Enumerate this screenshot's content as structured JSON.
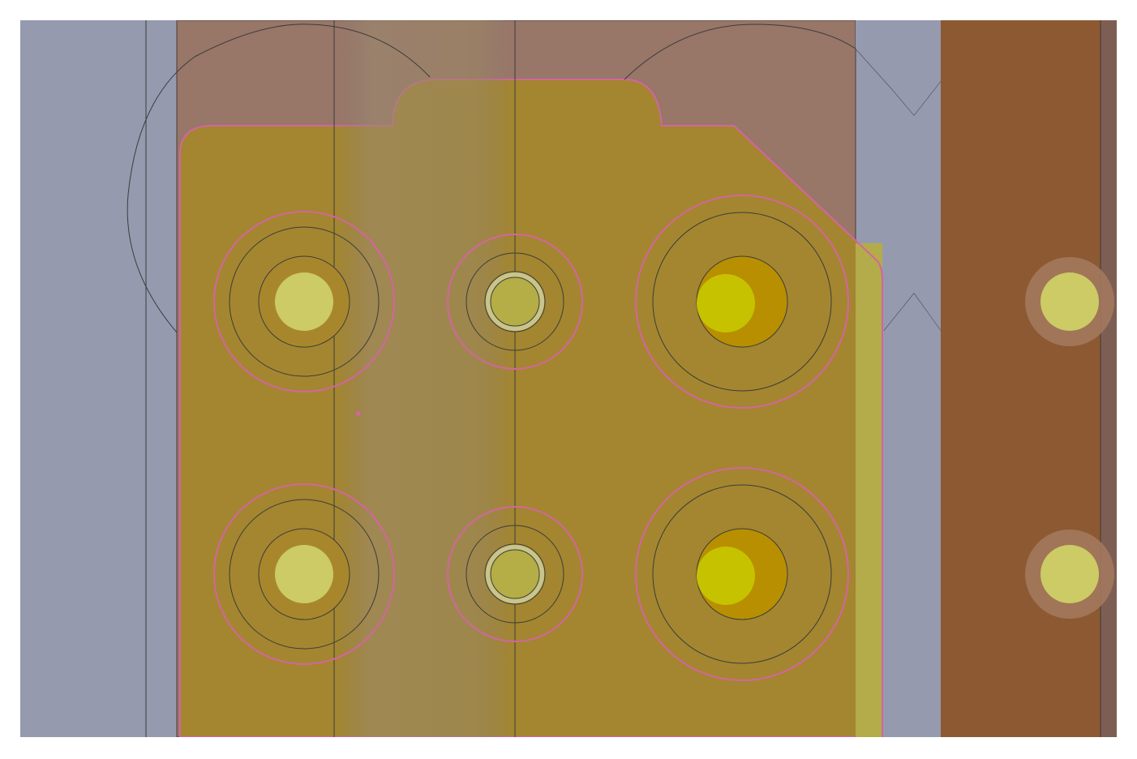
{
  "view": {
    "type": "pcb-layout-zoom",
    "colors": {
      "page": "#ffffff",
      "board": "#959aaf",
      "copper_pour_outer": "#987668",
      "copper_pour_zone": "#a3862f",
      "trace_vertical": "#8c5932",
      "trace_dark_edge": "#7d5e52",
      "center_strip": "#9a8663",
      "yellow_strip": "#b4ab4a",
      "pad_light": "#cccb65",
      "pad_bright": "#c7c200",
      "pad_dark_ring": "#b88f00",
      "keepout_pink": "#d365a0",
      "outline": "#3c3c3c"
    }
  },
  "vias": {
    "rows": 2,
    "columns": 3,
    "types": [
      "standard-via",
      "small-via",
      "large-via"
    ],
    "right_trace_pads": 2
  }
}
